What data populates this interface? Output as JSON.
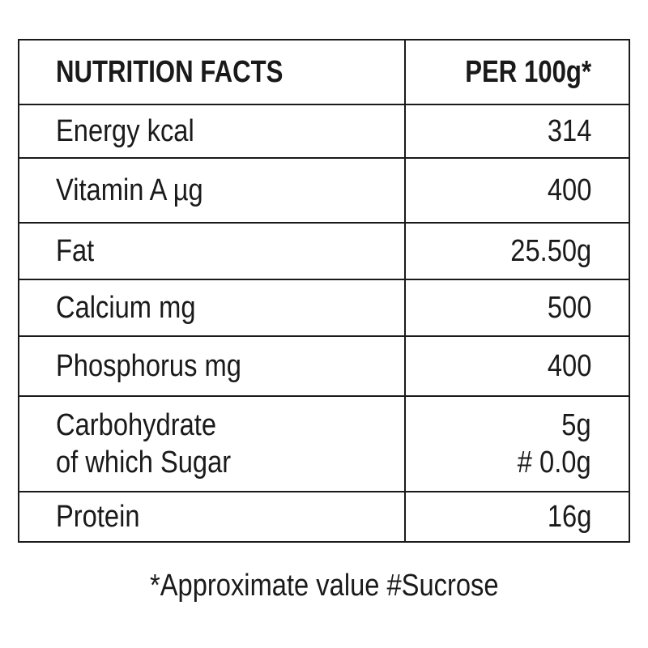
{
  "table": {
    "header": {
      "label": "NUTRITION FACTS",
      "value": "PER 100g*"
    },
    "rows": [
      {
        "label": "Energy kcal",
        "value": "314"
      },
      {
        "label": "Vitamin A µg",
        "value": "400"
      },
      {
        "label": "Fat",
        "value": "25.50g"
      },
      {
        "label": "Calcium mg",
        "value": "500"
      },
      {
        "label": "Phosphorus mg",
        "value": "400"
      },
      {
        "label": "Carbohydrate",
        "label2": "of which Sugar",
        "value": "5g",
        "value2": "# 0.0g"
      },
      {
        "label": "Protein",
        "value": "16g"
      }
    ]
  },
  "footnote": "*Approximate value #Sucrose"
}
